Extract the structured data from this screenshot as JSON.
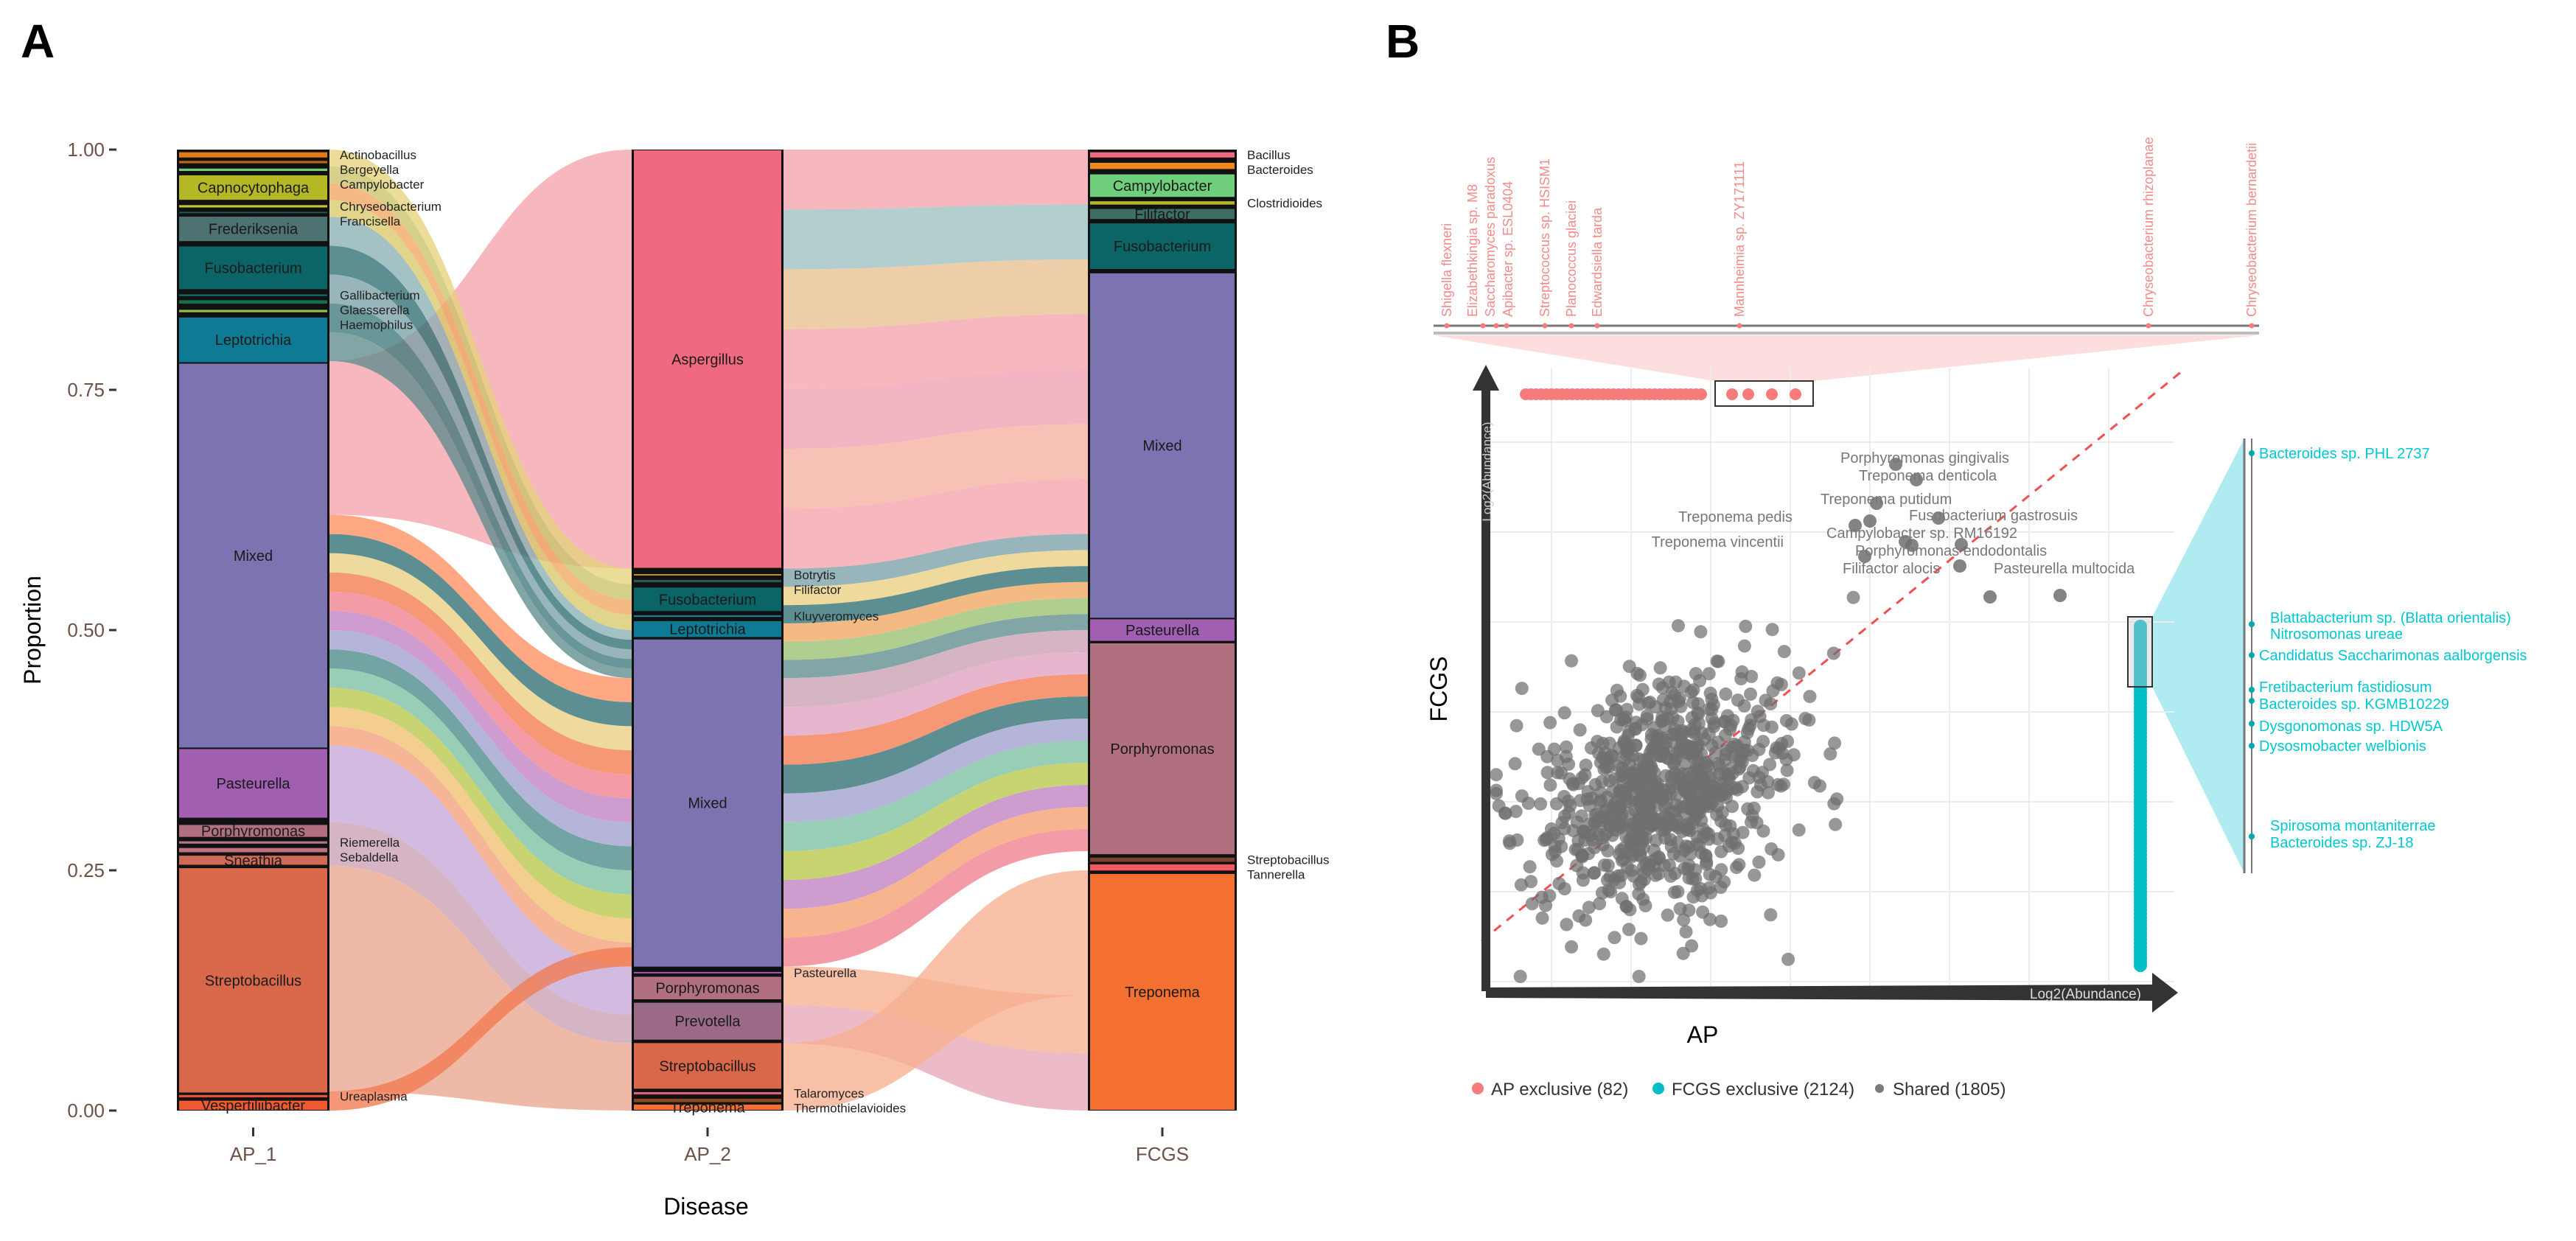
{
  "panels": {
    "a": "A",
    "b": "B"
  },
  "chart_data": [
    {
      "type": "alluvial",
      "panel": "A",
      "xlabel": "Disease",
      "ylabel": "Proportion",
      "ylim": [
        0,
        1
      ],
      "yticks": [
        "1.00",
        "0.75",
        "0.50",
        "0.25",
        "0.00"
      ],
      "ytick_values": [
        1,
        0.75,
        0.5,
        0.25,
        0
      ],
      "axes": [
        "AP_1",
        "AP_2",
        "FCGS"
      ],
      "strata": {
        "AP_1": [
          {
            "name": "Actinobacillus",
            "from": 0.991,
            "to": 0.998,
            "color": "#e07b18",
            "label": "outside"
          },
          {
            "name": "Bergeyella",
            "from": 0.985,
            "to": 0.989,
            "color": "#b86a14",
            "label": "outside"
          },
          {
            "name": "Campylobacter",
            "from": 0.977,
            "to": 0.981,
            "color": "#6fcf7c",
            "label": "outside"
          },
          {
            "name": "Capnocytophaga",
            "from": 0.947,
            "to": 0.974,
            "color": "#b5b825",
            "label": "inside"
          },
          {
            "name": "Chryseobacterium",
            "from": 0.939,
            "to": 0.943,
            "color": "#c3c33a",
            "label": "outside"
          },
          {
            "name": "Francisella",
            "from": 0.933,
            "to": 0.936,
            "color": "#1e5a5a",
            "label": "outside"
          },
          {
            "name": "Frederiksenia",
            "from": 0.904,
            "to": 0.931,
            "color": "#4d7271",
            "label": "inside"
          },
          {
            "name": "Fusobacterium",
            "from": 0.854,
            "to": 0.9,
            "color": "#0b6466",
            "label": "inside"
          },
          {
            "name": "Gallibacterium",
            "from": 0.847,
            "to": 0.85,
            "color": "#0d7a80",
            "label": "outside"
          },
          {
            "name": "Glaesserella",
            "from": 0.839,
            "to": 0.844,
            "color": "#16704b",
            "label": "outside"
          },
          {
            "name": "Haemophilus",
            "from": 0.83,
            "to": 0.834,
            "color": "#8fc14a",
            "label": "outside"
          },
          {
            "name": "Leptotrichia",
            "from": 0.778,
            "to": 0.826,
            "color": "#0e7a94",
            "label": "inside"
          },
          {
            "name": "Mixed",
            "from": 0.377,
            "to": 0.778,
            "color": "#7b74b0",
            "label": "inside"
          },
          {
            "name": "Pasteurella",
            "from": 0.304,
            "to": 0.377,
            "color": "#a05fb0",
            "label": "inside"
          },
          {
            "name": "Porphyromonas",
            "from": 0.284,
            "to": 0.298,
            "color": "#b07080",
            "label": "inside"
          },
          {
            "name": "Riemerella",
            "from": 0.277,
            "to": 0.281,
            "color": "#b2748a",
            "label": "outside"
          },
          {
            "name": "Sebaldella",
            "from": 0.268,
            "to": 0.274,
            "color": "#c0707a",
            "label": "outside"
          },
          {
            "name": "Sneathia",
            "from": 0.255,
            "to": 0.266,
            "color": "#d06a56",
            "label": "inside"
          },
          {
            "name": "Streptobacillus",
            "from": 0.018,
            "to": 0.253,
            "color": "#d9684a",
            "label": "inside"
          },
          {
            "name": "Ureaplasma",
            "from": 0.013,
            "to": 0.017,
            "color": "#e8503a",
            "label": "outside"
          },
          {
            "name": "Vespertiliibacter",
            "from": 0.0,
            "to": 0.011,
            "color": "#f05a30",
            "label": "inside"
          }
        ],
        "AP_2": [
          {
            "name": "Aspergillus",
            "from": 0.564,
            "to": 1.0,
            "color": "#ef6a7e",
            "label": "inside"
          },
          {
            "name": "Botrytis",
            "from": 0.556,
            "to": 0.559,
            "color": "#c8961e",
            "label": "outside"
          },
          {
            "name": "Filifactor",
            "from": 0.549,
            "to": 0.553,
            "color": "#2b5a50",
            "label": "outside"
          },
          {
            "name": "Fusobacterium",
            "from": 0.519,
            "to": 0.545,
            "color": "#0b6466",
            "label": "inside"
          },
          {
            "name": "Kluyveromyces",
            "from": 0.513,
            "to": 0.516,
            "color": "#1a8aa0",
            "label": "outside"
          },
          {
            "name": "Leptotrichia",
            "from": 0.492,
            "to": 0.51,
            "color": "#0e7a94",
            "label": "inside"
          },
          {
            "name": "Mixed",
            "from": 0.149,
            "to": 0.491,
            "color": "#7b74b0",
            "label": "inside"
          },
          {
            "name": "Pasteurella",
            "from": 0.142,
            "to": 0.145,
            "color": "#a05fb0",
            "label": "outside"
          },
          {
            "name": "Porphyromonas",
            "from": 0.115,
            "to": 0.14,
            "color": "#b07080",
            "label": "inside"
          },
          {
            "name": "Prevotella",
            "from": 0.073,
            "to": 0.113,
            "color": "#9a6a86",
            "label": "inside"
          },
          {
            "name": "Streptobacillus",
            "from": 0.022,
            "to": 0.071,
            "color": "#d9684a",
            "label": "inside"
          },
          {
            "name": "Talaromyces",
            "from": 0.016,
            "to": 0.02,
            "color": "#e0607a",
            "label": "outside"
          },
          {
            "name": "Thermothielavioides",
            "from": 0.008,
            "to": 0.013,
            "color": "#8a4a20",
            "label": "outside"
          },
          {
            "name": "Treponema",
            "from": 0.0,
            "to": 0.007,
            "color": "#f47030",
            "label": "inside"
          }
        ],
        "FCGS": [
          {
            "name": "Bacillus",
            "from": 0.991,
            "to": 0.998,
            "color": "#ef6a7e",
            "label": "outside"
          },
          {
            "name": "Bacteroides",
            "from": 0.979,
            "to": 0.987,
            "color": "#ef8a1a",
            "label": "outside"
          },
          {
            "name": "Campylobacter",
            "from": 0.95,
            "to": 0.975,
            "color": "#6fcf7c",
            "label": "inside"
          },
          {
            "name": "Clostridioides",
            "from": 0.942,
            "to": 0.947,
            "color": "#b5b825",
            "label": "outside"
          },
          {
            "name": "Filifactor",
            "from": 0.927,
            "to": 0.939,
            "color": "#3e6e62",
            "label": "inside"
          },
          {
            "name": "Fusobacterium",
            "from": 0.875,
            "to": 0.924,
            "color": "#0b6466",
            "label": "inside"
          },
          {
            "name": "Mixed",
            "from": 0.512,
            "to": 0.872,
            "color": "#7b74b0",
            "label": "inside"
          },
          {
            "name": "Pasteurella",
            "from": 0.488,
            "to": 0.512,
            "color": "#a05fb0",
            "label": "inside"
          },
          {
            "name": "Porphyromonas",
            "from": 0.266,
            "to": 0.487,
            "color": "#b07080",
            "label": "inside"
          },
          {
            "name": "Streptobacillus",
            "from": 0.258,
            "to": 0.264,
            "color": "#7a4030",
            "label": "outside"
          },
          {
            "name": "Tannerella",
            "from": 0.249,
            "to": 0.257,
            "color": "#ef5a64",
            "label": "outside"
          },
          {
            "name": "Treponema",
            "from": 0.0,
            "to": 0.247,
            "color": "#f47030",
            "label": "inside"
          }
        ]
      },
      "flows": [
        {
          "from": "AP_1",
          "to": "AP_2",
          "from_range": [
            0.62,
            0.78
          ],
          "to_range": [
            0.564,
            1.0
          ],
          "colors": [
            "#f4a3ac"
          ]
        },
        {
          "from": "AP_1",
          "to": "AP_2",
          "from_range": [
            0.93,
            1.0
          ],
          "to_range": [
            0.5,
            0.564
          ],
          "colors": [
            "#d8c86a",
            "#f0a860",
            "#c9c46a",
            "#e6d27a"
          ]
        },
        {
          "from": "AP_1",
          "to": "AP_2",
          "from_range": [
            0.78,
            0.93
          ],
          "to_range": [
            0.45,
            0.5
          ],
          "colors": [
            "#5f8c8c",
            "#3f7a7c",
            "#7aa0a8",
            "#2f6e72",
            "#8ab0b4"
          ]
        },
        {
          "from": "AP_1",
          "to": "AP_2",
          "from_range": [
            0.38,
            0.62
          ],
          "to_range": [
            0.15,
            0.45
          ],
          "colors": [
            "#f5a07a",
            "#f0c070",
            "#b8c84a",
            "#7ac0a0",
            "#4a8a8a",
            "#a0a0d0",
            "#c080c0",
            "#f08090",
            "#f47a50",
            "#e8d080",
            "#2f6e72",
            "#ff9060"
          ]
        },
        {
          "from": "AP_1",
          "to": "AP_2",
          "from_range": [
            0.3,
            0.38
          ],
          "to_range": [
            0.1,
            0.15
          ],
          "colors": [
            "#c7a6d8"
          ]
        },
        {
          "from": "AP_1",
          "to": "AP_2",
          "from_range": [
            0.255,
            0.3
          ],
          "to_range": [
            0.07,
            0.1
          ],
          "colors": [
            "#c9a0b4"
          ]
        },
        {
          "from": "AP_1",
          "to": "AP_2",
          "from_range": [
            0.02,
            0.255
          ],
          "to_range": [
            0.0,
            0.07
          ],
          "colors": [
            "#eba58e"
          ]
        },
        {
          "from": "AP_1",
          "to": "AP_2",
          "from_range": [
            0.0,
            0.02
          ],
          "to_range": [
            0.15,
            0.17
          ],
          "colors": [
            "#f27a50"
          ]
        },
        {
          "from": "AP_2",
          "to": "FCGS",
          "from_range": [
            0.564,
            1.0
          ],
          "to_range": [
            0.6,
            1.0
          ],
          "colors": [
            "#f4a3ac",
            "#f6b0a0",
            "#f0a0b0",
            "#f4a3ac",
            "#e8c090",
            "#9cc0c0",
            "#f4a3ac"
          ]
        },
        {
          "from": "AP_2",
          "to": "FCGS",
          "from_range": [
            0.45,
            0.564
          ],
          "to_range": [
            0.5,
            0.6
          ],
          "colors": [
            "#5f8c8c",
            "#9ac070",
            "#f0a860",
            "#2f6e72",
            "#e8d080",
            "#7aa0a8"
          ]
        },
        {
          "from": "AP_2",
          "to": "FCGS",
          "from_range": [
            0.15,
            0.45
          ],
          "to_range": [
            0.27,
            0.5
          ],
          "colors": [
            "#f08090",
            "#f4a070",
            "#c080c0",
            "#b8c84a",
            "#7ac0a0",
            "#a0a0d0",
            "#2f6e72",
            "#f47a50",
            "#e0a0c0",
            "#c9a0b4"
          ]
        },
        {
          "from": "AP_2",
          "to": "FCGS",
          "from_range": [
            0.07,
            0.15
          ],
          "to_range": [
            0.0,
            0.12
          ],
          "colors": [
            "#e8a8b8",
            "#f6b08f"
          ]
        },
        {
          "from": "AP_2",
          "to": "FCGS",
          "from_range": [
            0.0,
            0.07
          ],
          "to_range": [
            0.12,
            0.25
          ],
          "colors": [
            "#f6b08f"
          ]
        }
      ]
    },
    {
      "type": "scatter",
      "panel": "B",
      "xlabel": "AP",
      "ylabel": "FCGS",
      "x_arrow_label": "Log2(Abundance)",
      "y_arrow_label": "Log2(Abundance)",
      "reference_line": "y = x (dashed)",
      "legend": [
        {
          "label": "AP exclusive (82)",
          "color": "#f87b7b",
          "count": 82
        },
        {
          "label": "FCGS exclusive (2124)",
          "color": "#00bfc6",
          "count": 2124
        },
        {
          "label": "Shared (1805)",
          "color": "#7a7a7a",
          "count": 1805
        }
      ],
      "legend_position": "bottom",
      "ap_exclusive_labels": [
        "Shigella flexneri",
        "Elizabethkingia sp. M8",
        "Saccharomyces paradoxus",
        "Apibacter sp. ESL0404",
        "Streptococcus sp. HSISM1",
        "Planococcus glaciei",
        "Edwardsiella tarda",
        "Mannheimia sp. ZY171111",
        "Chryseobacterium rhizoplanae",
        "Chryseobacterium bernardetii"
      ],
      "fcgs_exclusive_labels": [
        "Bacteroides sp. PHL 2737",
        "Blattabacterium sp. (Blatta orientalis)",
        "Nitrosomonas ureae",
        "Candidatus Saccharimonas aalborgensis",
        "Fretibacterium fastidiosum",
        "Bacteroides sp. KGMB10229",
        "Dysgonomonas sp. HDW5A",
        "Dysosmobacter welbionis",
        "Spirosoma montaniterrae",
        "Bacteroides sp. ZJ-18"
      ],
      "shared_labels": [
        "Porphyromonas gingivalis",
        "Treponema denticola",
        "Treponema putidum",
        "Fusobacterium gastrosuis",
        "Treponema pedis",
        "Campylobacter sp. RM16192",
        "Treponema vincentii",
        "Porphyromonas endodontalis",
        "Pasteurella multocida",
        "Filifactor alocis"
      ]
    }
  ]
}
